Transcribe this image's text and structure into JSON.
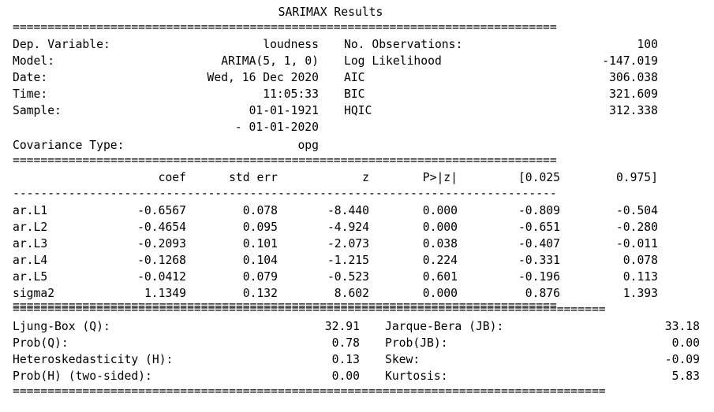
{
  "title": "SARIMAX Results",
  "info_left": [
    {
      "label": "Dep. Variable:",
      "value": "loudness"
    },
    {
      "label": "Model:",
      "value": "ARIMA(5, 1, 0)"
    },
    {
      "label": "Date:",
      "value": "Wed, 16 Dec 2020"
    },
    {
      "label": "Time:",
      "value": "11:05:33"
    },
    {
      "label": "Sample:",
      "value": "01-01-1921"
    },
    {
      "label": "",
      "value": "- 01-01-2020"
    },
    {
      "label": "Covariance Type:",
      "value": "opg"
    }
  ],
  "info_right": [
    {
      "label": "No. Observations:",
      "value": "100"
    },
    {
      "label": "Log Likelihood",
      "value": "-147.019"
    },
    {
      "label": "AIC",
      "value": "306.038"
    },
    {
      "label": "BIC",
      "value": "321.609"
    },
    {
      "label": "HQIC",
      "value": "312.338"
    }
  ],
  "coef_headers": [
    "coef",
    "std err",
    "z",
    "P>|z|",
    "[0.025",
    "0.975]"
  ],
  "coef_rows": [
    {
      "name": "ar.L1",
      "coef": "-0.6567",
      "std_err": "0.078",
      "z": "-8.440",
      "p": "0.000",
      "lo": "-0.809",
      "hi": "-0.504"
    },
    {
      "name": "ar.L2",
      "coef": "-0.4654",
      "std_err": "0.095",
      "z": "-4.924",
      "p": "0.000",
      "lo": "-0.651",
      "hi": "-0.280"
    },
    {
      "name": "ar.L3",
      "coef": "-0.2093",
      "std_err": "0.101",
      "z": "-2.073",
      "p": "0.038",
      "lo": "-0.407",
      "hi": "-0.011"
    },
    {
      "name": "ar.L4",
      "coef": "-0.1268",
      "std_err": "0.104",
      "z": "-1.215",
      "p": "0.224",
      "lo": "-0.331",
      "hi": "0.078"
    },
    {
      "name": "ar.L5",
      "coef": "-0.0412",
      "std_err": "0.079",
      "z": "-0.523",
      "p": "0.601",
      "lo": "-0.196",
      "hi": "0.113"
    },
    {
      "name": "sigma2",
      "coef": "1.1349",
      "std_err": "0.132",
      "z": "8.602",
      "p": "0.000",
      "lo": "0.876",
      "hi": "1.393"
    }
  ],
  "diag_left": [
    {
      "label": "Ljung-Box (Q):",
      "value": "32.91"
    },
    {
      "label": "Prob(Q):",
      "value": "0.78"
    },
    {
      "label": "Heteroskedasticity (H):",
      "value": "0.13"
    },
    {
      "label": "Prob(H) (two-sided):",
      "value": "0.00"
    }
  ],
  "diag_right": [
    {
      "label": "Jarque-Bera (JB):",
      "value": "33.18"
    },
    {
      "label": "Prob(JB):",
      "value": "0.00"
    },
    {
      "label": "Skew:",
      "value": "-0.09"
    },
    {
      "label": "Kurtosis:",
      "value": "5.83"
    }
  ],
  "rules": {
    "double_short": "==============================================================================",
    "single_short": "------------------------------------------------------------------------------",
    "double_long": "====================================================================================="
  }
}
